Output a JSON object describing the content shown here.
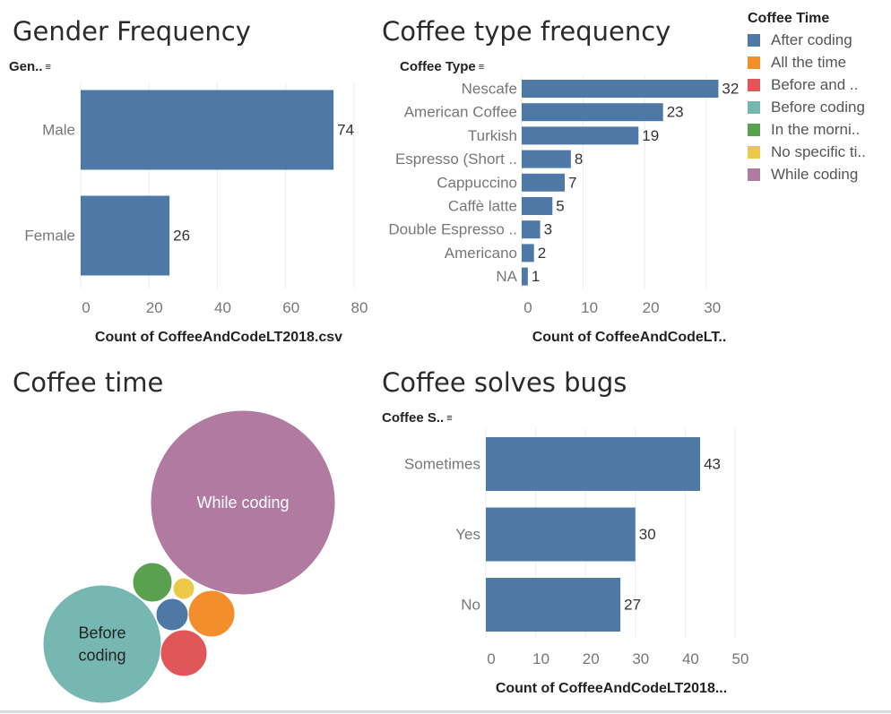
{
  "titles": {
    "gender": "Gender Frequency",
    "coffee_type": "Coffee type frequency",
    "coffee_time": "Coffee time",
    "bugs": "Coffee solves bugs"
  },
  "headers": {
    "gender": "Gen..",
    "coffee_type": "Coffee Type",
    "bugs": "Coffee S.."
  },
  "colors": {
    "bar": "#4e79a7",
    "gridline": "#ececec",
    "tick_text": "#777777",
    "axis_title": "#222222"
  },
  "legend": {
    "title": "Coffee Time",
    "items": [
      {
        "label": "After coding",
        "color": "#4e79a7"
      },
      {
        "label": "All the time",
        "color": "#f28e2b"
      },
      {
        "label": "Before and ..",
        "color": "#e15759"
      },
      {
        "label": "Before coding",
        "color": "#76b7b2"
      },
      {
        "label": "In the morni..",
        "color": "#59a14f"
      },
      {
        "label": "No specific ti..",
        "color": "#edc948"
      },
      {
        "label": "While coding",
        "color": "#b07aa1"
      }
    ]
  },
  "chart_data": [
    {
      "id": "gender",
      "type": "bar",
      "orientation": "horizontal",
      "categories": [
        "Male",
        "Female"
      ],
      "values": [
        74,
        26
      ],
      "xlabel": "Count of CoffeeAndCodeLT2018.csv",
      "xlim": [
        0,
        80
      ],
      "ticks": [
        0,
        20,
        40,
        60,
        80
      ],
      "grid": true
    },
    {
      "id": "coffee_type",
      "type": "bar",
      "orientation": "horizontal",
      "categories": [
        "Nescafe",
        "American Coffee",
        "Turkish",
        "Espresso (Short ..",
        "Cappuccino",
        "Caffè latte",
        "Double Espresso ..",
        "Americano",
        "NA"
      ],
      "values": [
        32,
        23,
        19,
        8,
        7,
        5,
        3,
        2,
        1
      ],
      "xlabel": "Count of CoffeeAndCodeLT..",
      "xlim": [
        0,
        35
      ],
      "ticks": [
        0,
        10,
        20,
        30
      ],
      "grid": true
    },
    {
      "id": "coffee_time",
      "type": "bubble",
      "bubbles": [
        {
          "category": "While coding",
          "label": "While coding",
          "color": "#b07aa1",
          "label_color": "#ffffff"
        },
        {
          "category": "Before coding",
          "label": "Before\ncoding",
          "color": "#76b7b2",
          "label_color": "#222222"
        },
        {
          "category": "All the time",
          "label": "",
          "color": "#f28e2b",
          "label_color": "#ffffff"
        },
        {
          "category": "Before and ..",
          "label": "",
          "color": "#e15759",
          "label_color": "#ffffff"
        },
        {
          "category": "In the morni..",
          "label": "",
          "color": "#59a14f",
          "label_color": "#ffffff"
        },
        {
          "category": "After coding",
          "label": "",
          "color": "#4e79a7",
          "label_color": "#ffffff"
        },
        {
          "category": "No specific ti..",
          "label": "",
          "color": "#edc948",
          "label_color": "#ffffff"
        }
      ]
    },
    {
      "id": "bugs",
      "type": "bar",
      "orientation": "horizontal",
      "categories": [
        "Sometimes",
        "Yes",
        "No"
      ],
      "values": [
        43,
        30,
        27
      ],
      "xlabel": "Count of CoffeeAndCodeLT2018...",
      "xlim": [
        0,
        50
      ],
      "ticks": [
        0,
        10,
        20,
        30,
        40,
        50
      ],
      "grid": true
    }
  ]
}
